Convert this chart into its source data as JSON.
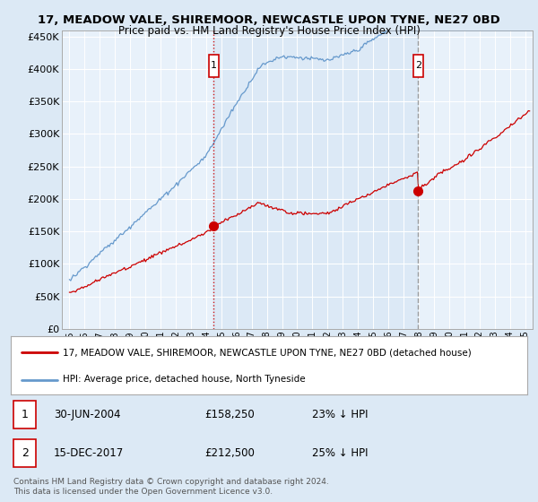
{
  "title1": "17, MEADOW VALE, SHIREMOOR, NEWCASTLE UPON TYNE, NE27 0BD",
  "title2": "Price paid vs. HM Land Registry's House Price Index (HPI)",
  "bg_color": "#dce9f5",
  "plot_bg_color": "#e8f1fa",
  "shade_color": "#c8dcf0",
  "grid_color": "#ffffff",
  "sale1_date_x": 2004.5,
  "sale1_price": 158250,
  "sale2_date_x": 2017.96,
  "sale2_price": 212500,
  "ylim": [
    0,
    460000
  ],
  "xlim": [
    1994.5,
    2025.5
  ],
  "yticks": [
    0,
    50000,
    100000,
    150000,
    200000,
    250000,
    300000,
    350000,
    400000,
    450000
  ],
  "ytick_labels": [
    "£0",
    "£50K",
    "£100K",
    "£150K",
    "£200K",
    "£250K",
    "£300K",
    "£350K",
    "£400K",
    "£450K"
  ],
  "xticks": [
    1995,
    1996,
    1997,
    1998,
    1999,
    2000,
    2001,
    2002,
    2003,
    2004,
    2005,
    2006,
    2007,
    2008,
    2009,
    2010,
    2011,
    2012,
    2013,
    2014,
    2015,
    2016,
    2017,
    2018,
    2019,
    2020,
    2021,
    2022,
    2023,
    2024,
    2025
  ],
  "red_line_color": "#cc0000",
  "blue_line_color": "#6699cc",
  "legend_label_red": "17, MEADOW VALE, SHIREMOOR, NEWCASTLE UPON TYNE, NE27 0BD (detached house)",
  "legend_label_blue": "HPI: Average price, detached house, North Tyneside",
  "annotation1_label": "1",
  "annotation1_date": "30-JUN-2004",
  "annotation1_price": "£158,250",
  "annotation1_hpi": "23% ↓ HPI",
  "annotation2_label": "2",
  "annotation2_date": "15-DEC-2017",
  "annotation2_price": "£212,500",
  "annotation2_hpi": "25% ↓ HPI",
  "footer": "Contains HM Land Registry data © Crown copyright and database right 2024.\nThis data is licensed under the Open Government Licence v3.0."
}
